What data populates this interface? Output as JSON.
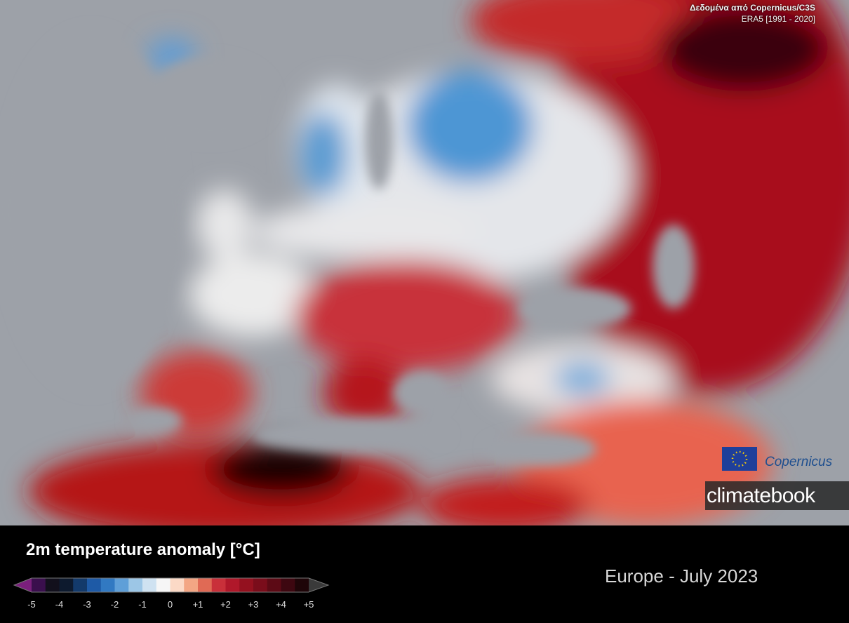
{
  "credit": {
    "line1": "Δεδομένα από Copernicus/C3S",
    "line2": "ERA5 [1991 - 2020]"
  },
  "logos": {
    "copernicus": "Copernicus",
    "climatebook": "climatebook"
  },
  "title": "2m temperature anomaly [°C]",
  "subtitle": "Europe - July 2023",
  "legend": {
    "ticks": [
      "-5",
      "-4",
      "-3",
      "-2",
      "-1",
      "0",
      "+1",
      "+2",
      "+3",
      "+4",
      "+5"
    ],
    "colors": [
      "#3a0f4d",
      "#12101c",
      "#0d1a2e",
      "#133a6b",
      "#1e5aa6",
      "#3179c2",
      "#5f9fd8",
      "#9cc6e6",
      "#cfe2f1",
      "#f6f6f6",
      "#fbd9c6",
      "#f3a684",
      "#e06a55",
      "#c9303a",
      "#b0182a",
      "#94111f",
      "#7a0d1b",
      "#5c0a15",
      "#3d0710",
      "#1e0508"
    ],
    "low_color": "#7a1f7c",
    "high_color": "#3a3a3a"
  }
}
